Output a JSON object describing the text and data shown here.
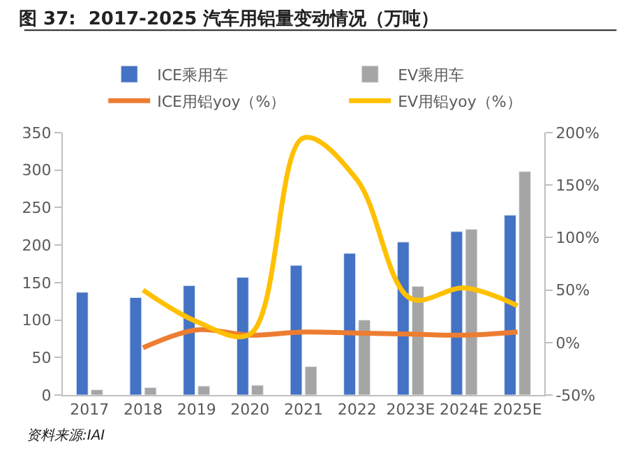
{
  "chart_data": {
    "type": "bar",
    "title": "图 37:  2017-2025 汽车用铝量变动情况（万吨）",
    "categories": [
      "2017",
      "2018",
      "2019",
      "2020",
      "2021",
      "2022",
      "2023E",
      "2024E",
      "2025E"
    ],
    "series": [
      {
        "name": "ICE乘用车",
        "color": "#4472c4",
        "values": [
          137,
          130,
          146,
          157,
          173,
          189,
          204,
          218,
          240
        ]
      },
      {
        "name": "EV乘用车",
        "color": "#a5a5a5",
        "values": [
          7,
          10,
          12,
          13,
          38,
          100,
          145,
          221,
          298
        ]
      },
      {
        "name": "ICE用铝yoy（%）",
        "type": "line",
        "axis": "y2",
        "color": "#ed7d31",
        "values": [
          null,
          -5,
          12,
          7,
          10,
          9,
          8,
          7,
          10
        ]
      },
      {
        "name": "EV用铝yoy（%）",
        "type": "line",
        "axis": "y2",
        "color": "#ffc000",
        "values": [
          null,
          50,
          20,
          8,
          195,
          155,
          42,
          52,
          35
        ]
      }
    ],
    "ylim": [
      0,
      350
    ],
    "yticks": [
      0,
      50,
      100,
      150,
      200,
      250,
      300,
      350
    ],
    "y2lim": [
      -50,
      200
    ],
    "y2ticks": [
      {
        "value": -50,
        "label": "-50%"
      },
      {
        "value": 0,
        "label": "0%"
      },
      {
        "value": 50,
        "label": "50%"
      },
      {
        "value": 100,
        "label": "100%"
      },
      {
        "value": 150,
        "label": "150%"
      },
      {
        "value": 200,
        "label": "200%"
      }
    ],
    "legend": "top",
    "annotations": [
      "资料来源:IAI"
    ]
  }
}
